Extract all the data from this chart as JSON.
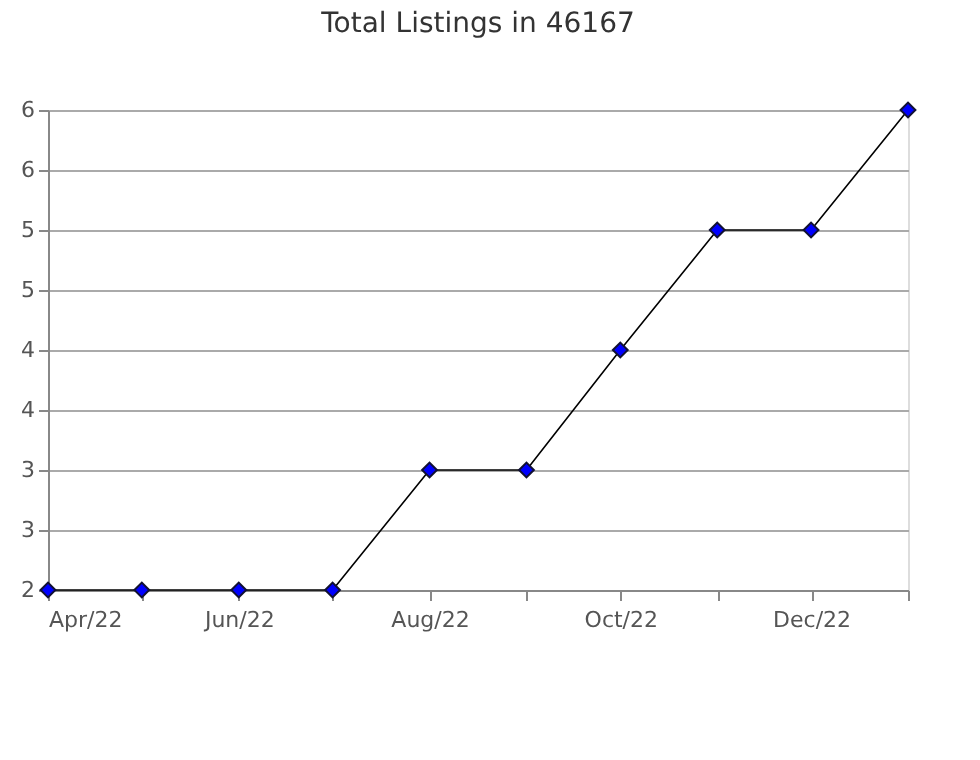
{
  "chart_data": {
    "type": "line",
    "title": "Total Listings in 46167",
    "x": [
      "2022-04-01",
      "2022-05-01",
      "2022-06-01",
      "2022-07-01",
      "2022-08-01",
      "2022-09-01",
      "2022-10-01",
      "2022-11-01",
      "2022-12-01",
      "2023-01-01"
    ],
    "series": [
      {
        "color": "#0000ff",
        "values": [
          2,
          2,
          2,
          2,
          3,
          3,
          4,
          5,
          5,
          6
        ]
      }
    ],
    "xlim": [
      "2022-04-01",
      "2023-01-01"
    ],
    "xticks": [
      {
        "value": "2022-04-01",
        "label": "Apr/22"
      },
      {
        "value": "2022-05-01",
        "label": null
      },
      {
        "value": "2022-06-01",
        "label": "Jun/22"
      },
      {
        "value": "2022-07-01",
        "label": null
      },
      {
        "value": "2022-08-01",
        "label": "Aug/22"
      },
      {
        "value": "2022-09-01",
        "label": null
      },
      {
        "value": "2022-10-01",
        "label": "Oct/22"
      },
      {
        "value": "2022-11-01",
        "label": null
      },
      {
        "value": "2022-12-01",
        "label": "Dec/22"
      },
      {
        "value": "2023-01-01",
        "label": null
      }
    ],
    "ylim": [
      2,
      6
    ],
    "yticks": [
      {
        "value": 2,
        "label": "2"
      },
      {
        "value": 2.5,
        "label": "3"
      },
      {
        "value": 3,
        "label": "3"
      },
      {
        "value": 3.5,
        "label": "4"
      },
      {
        "value": 4,
        "label": "4"
      },
      {
        "value": 4.5,
        "label": "5"
      },
      {
        "value": 5,
        "label": "5"
      },
      {
        "value": 5.5,
        "label": "6"
      },
      {
        "value": 6,
        "label": "6"
      }
    ],
    "grid": "y",
    "marker": "diamond",
    "line_style": "solid"
  }
}
